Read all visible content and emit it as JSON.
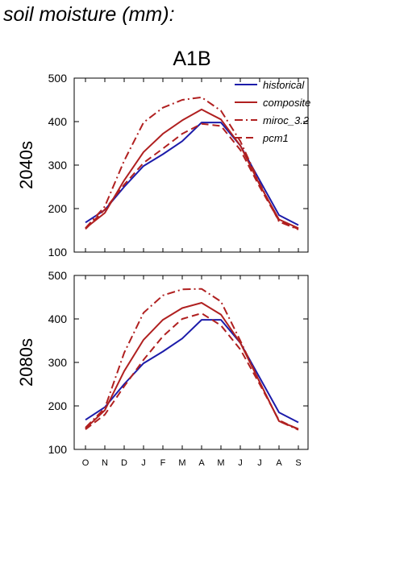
{
  "page": {
    "title": "soil moisture (mm):"
  },
  "chart_data": {
    "type": "line",
    "title": "A1B",
    "months": [
      "O",
      "N",
      "D",
      "J",
      "F",
      "M",
      "A",
      "M",
      "J",
      "J",
      "A",
      "S"
    ],
    "ylim": [
      100,
      500
    ],
    "yticks": [
      100,
      200,
      300,
      400,
      500
    ],
    "legend": {
      "placement": "top-right",
      "entries": [
        {
          "name": "historical",
          "color": "#1c1caa",
          "dash": "solid"
        },
        {
          "name": "composite",
          "color": "#b02020",
          "dash": "solid"
        },
        {
          "name": "miroc_3.2",
          "color": "#b02020",
          "dash": "dashdot"
        },
        {
          "name": "pcm1",
          "color": "#b02020",
          "dash": "dashed"
        }
      ]
    },
    "panels": [
      {
        "ylabel": "2040s",
        "series": [
          {
            "name": "historical",
            "values": [
              168,
              197,
              250,
              298,
              325,
              355,
              398,
              398,
              345,
              265,
              185,
              162
            ]
          },
          {
            "name": "composite",
            "values": [
              155,
              190,
              265,
              330,
              372,
              403,
              428,
              405,
              345,
              255,
              175,
              155
            ]
          },
          {
            "name": "miroc_3.2",
            "values": [
              155,
              205,
              310,
              398,
              432,
              450,
              456,
              425,
              355,
              258,
              170,
              152
            ]
          },
          {
            "name": "pcm1",
            "values": [
              153,
              198,
              255,
              305,
              338,
              372,
              395,
              390,
              335,
              250,
              172,
              153
            ]
          }
        ]
      },
      {
        "ylabel": "2080s",
        "series": [
          {
            "name": "historical",
            "values": [
              168,
              197,
              250,
              298,
              325,
              355,
              398,
              398,
              345,
              265,
              185,
              162
            ]
          },
          {
            "name": "composite",
            "values": [
              148,
              190,
              280,
              352,
              398,
              425,
              437,
              410,
              345,
              255,
              165,
              147
            ]
          },
          {
            "name": "miroc_3.2",
            "values": [
              150,
              195,
              322,
              414,
              454,
              468,
              469,
              440,
              350,
              255,
              165,
              145
            ]
          },
          {
            "name": "pcm1",
            "values": [
              146,
              180,
              245,
              306,
              360,
              400,
              413,
              385,
              330,
              250,
              167,
              146
            ]
          }
        ]
      }
    ]
  }
}
